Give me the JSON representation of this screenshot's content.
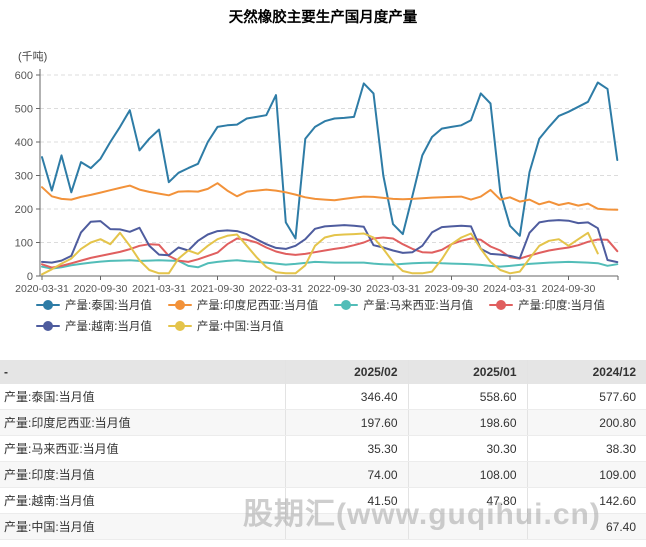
{
  "title": "天然橡胶主要生产国月度产量",
  "chart_data": {
    "type": "line",
    "unit": "(千吨)",
    "ylim": [
      0,
      600
    ],
    "y_ticks": [
      0,
      100,
      200,
      300,
      400,
      500,
      600
    ],
    "grid": "horizontal-dashed",
    "legend_position": "bottom",
    "x": [
      "2020-03",
      "2020-04",
      "2020-05",
      "2020-06",
      "2020-07",
      "2020-08",
      "2020-09",
      "2020-10",
      "2020-11",
      "2020-12",
      "2021-01",
      "2021-02",
      "2021-03",
      "2021-04",
      "2021-05",
      "2021-06",
      "2021-07",
      "2021-08",
      "2021-09",
      "2021-10",
      "2021-11",
      "2021-12",
      "2022-01",
      "2022-02",
      "2022-03",
      "2022-04",
      "2022-05",
      "2022-06",
      "2022-07",
      "2022-08",
      "2022-09",
      "2022-10",
      "2022-11",
      "2022-12",
      "2023-01",
      "2023-02",
      "2023-03",
      "2023-04",
      "2023-05",
      "2023-06",
      "2023-07",
      "2023-08",
      "2023-09",
      "2023-10",
      "2023-11",
      "2023-12",
      "2024-01",
      "2024-02",
      "2024-03",
      "2024-04",
      "2024-05",
      "2024-06",
      "2024-07",
      "2024-08",
      "2024-09",
      "2024-10",
      "2024-11",
      "2024-12",
      "2025-01",
      "2025-02"
    ],
    "x_tick_positions": [
      0,
      6,
      12,
      18,
      24,
      30,
      36,
      42,
      48,
      54
    ],
    "x_tick_labels": [
      "2020-03-31",
      "2020-09-30",
      "2021-03-31",
      "2021-09-30",
      "2022-03-31",
      "2022-09-30",
      "2023-03-31",
      "2023-09-30",
      "2024-03-31",
      "2024-09-30"
    ],
    "series": [
      {
        "id": "thailand",
        "name": "产量:泰国:当月值",
        "color": "#2e7ca6",
        "values": [
          355,
          255,
          360,
          250,
          340,
          322,
          350,
          400,
          445,
          495,
          375,
          410,
          437,
          280,
          308,
          322,
          335,
          400,
          445,
          450,
          452,
          470,
          475,
          480,
          540,
          160,
          112,
          410,
          445,
          462,
          470,
          472,
          475,
          575,
          545,
          300,
          155,
          125,
          240,
          360,
          415,
          440,
          445,
          450,
          465,
          545,
          515,
          250,
          150,
          120,
          310,
          410,
          445,
          478,
          490,
          505,
          520,
          577.6,
          558.6,
          346.4
        ]
      },
      {
        "id": "indonesia",
        "name": "产量:印度尼西亚:当月值",
        "color": "#f2923a",
        "values": [
          265,
          238,
          230,
          228,
          236,
          242,
          249,
          256,
          263,
          270,
          258,
          251,
          246,
          241,
          252,
          253,
          252,
          260,
          277,
          255,
          238,
          252,
          255,
          258,
          255,
          250,
          243,
          235,
          230,
          228,
          226,
          230,
          234,
          237,
          236,
          233,
          230,
          229,
          230,
          232,
          234,
          235,
          236,
          237,
          228,
          237,
          257,
          228,
          235,
          222,
          228,
          214,
          222,
          212,
          218,
          210,
          216,
          200.8,
          198.6,
          197.6
        ]
      },
      {
        "id": "malaysia",
        "name": "产量:马来西亚:当月值",
        "color": "#52bdb8",
        "values": [
          28,
          22,
          26,
          32,
          36,
          40,
          43,
          45,
          46,
          47,
          45,
          46,
          47,
          46,
          45,
          30,
          26,
          38,
          42,
          45,
          47,
          44,
          42,
          40,
          37,
          34,
          36,
          39,
          42,
          41,
          40,
          40,
          40,
          40,
          37,
          35,
          34,
          36,
          38,
          39,
          40,
          38,
          37,
          36,
          35,
          33,
          30,
          28,
          30,
          33,
          36,
          38,
          40,
          41,
          42,
          41,
          40,
          38.3,
          30.3,
          35.3
        ]
      },
      {
        "id": "india",
        "name": "产量:印度:当月值",
        "color": "#e05f5f",
        "values": [
          35,
          25,
          30,
          38,
          46,
          54,
          60,
          66,
          72,
          80,
          90,
          95,
          93,
          60,
          46,
          42,
          50,
          60,
          70,
          95,
          112,
          108,
          100,
          85,
          73,
          66,
          63,
          66,
          71,
          76,
          81,
          85,
          92,
          100,
          112,
          115,
          112,
          95,
          81,
          71,
          70,
          78,
          95,
          105,
          112,
          108,
          88,
          76,
          56,
          52,
          61,
          69,
          76,
          81,
          85,
          92,
          102,
          109,
          108,
          74
        ]
      },
      {
        "id": "vietnam",
        "name": "产量:越南:当月值",
        "color": "#4e5c9e",
        "values": [
          42,
          40,
          46,
          60,
          130,
          162,
          164,
          140,
          139,
          132,
          144,
          90,
          64,
          62,
          85,
          76,
          105,
          124,
          134,
          136,
          134,
          125,
          110,
          95,
          84,
          81,
          90,
          110,
          141,
          148,
          150,
          152,
          150,
          147,
          92,
          85,
          76,
          69,
          71,
          90,
          130,
          146,
          148,
          150,
          148,
          81,
          66,
          64,
          60,
          53,
          129,
          160,
          165,
          167,
          165,
          158,
          160,
          142.6,
          47.8,
          41.5
        ]
      },
      {
        "id": "china",
        "name": "产量:中国:当月值",
        "color": "#e4c44b",
        "values": [
          5,
          20,
          37,
          52,
          81,
          100,
          110,
          95,
          129,
          90,
          47,
          18,
          8,
          8,
          52,
          76,
          66,
          90,
          110,
          120,
          124,
          90,
          56,
          27,
          11,
          8,
          8,
          32,
          90,
          115,
          122,
          124,
          125,
          127,
          115,
          81,
          42,
          15,
          8,
          8,
          13,
          50,
          95,
          115,
          127,
          81,
          42,
          18,
          8,
          13,
          52,
          90,
          105,
          110,
          90,
          110,
          129,
          67.4,
          null,
          null
        ]
      }
    ]
  },
  "table": {
    "headers": [
      "-",
      "2025/02",
      "2025/01",
      "2024/12"
    ],
    "rows": [
      {
        "label": "产量:泰国:当月值",
        "values": [
          "346.40",
          "558.60",
          "577.60"
        ]
      },
      {
        "label": "产量:印度尼西亚:当月值",
        "values": [
          "197.60",
          "198.60",
          "200.80"
        ]
      },
      {
        "label": "产量:马来西亚:当月值",
        "values": [
          "35.30",
          "30.30",
          "38.30"
        ]
      },
      {
        "label": "产量:印度:当月值",
        "values": [
          "74.00",
          "108.00",
          "109.00"
        ]
      },
      {
        "label": "产量:越南:当月值",
        "values": [
          "41.50",
          "47.80",
          "142.60"
        ]
      },
      {
        "label": "产量:中国:当月值",
        "values": [
          "",
          "",
          "67.40"
        ]
      }
    ]
  },
  "watermark": "股期汇(www.guqihui.cn)"
}
